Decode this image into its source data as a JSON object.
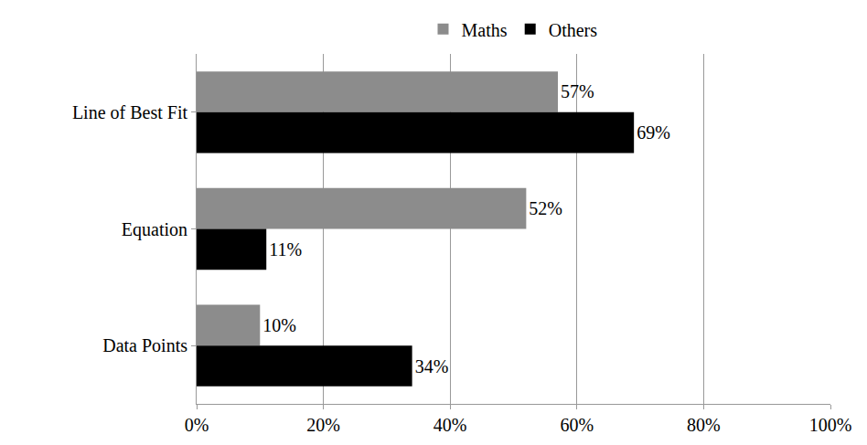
{
  "chart_data": {
    "type": "bar",
    "orientation": "horizontal",
    "categories": [
      "Line of Best Fit",
      "Equation",
      "Data Points"
    ],
    "series": [
      {
        "name": "Maths",
        "color": "#8c8c8c",
        "values": [
          57,
          52,
          10
        ],
        "value_labels": [
          "57%",
          "52%",
          "10%"
        ]
      },
      {
        "name": "Others",
        "color": "#000000",
        "values": [
          69,
          11,
          34
        ],
        "value_labels": [
          "69%",
          "11%",
          "34%"
        ]
      }
    ],
    "xlim": [
      0,
      100
    ],
    "xticks": [
      {
        "value": 0,
        "label": "0%"
      },
      {
        "value": 20,
        "label": "20%"
      },
      {
        "value": 40,
        "label": "40%"
      },
      {
        "value": 60,
        "label": "60%"
      },
      {
        "value": 80,
        "label": "80%"
      },
      {
        "value": 100,
        "label": "100%"
      }
    ],
    "grid": true,
    "legend": "top",
    "data_labels": true
  }
}
